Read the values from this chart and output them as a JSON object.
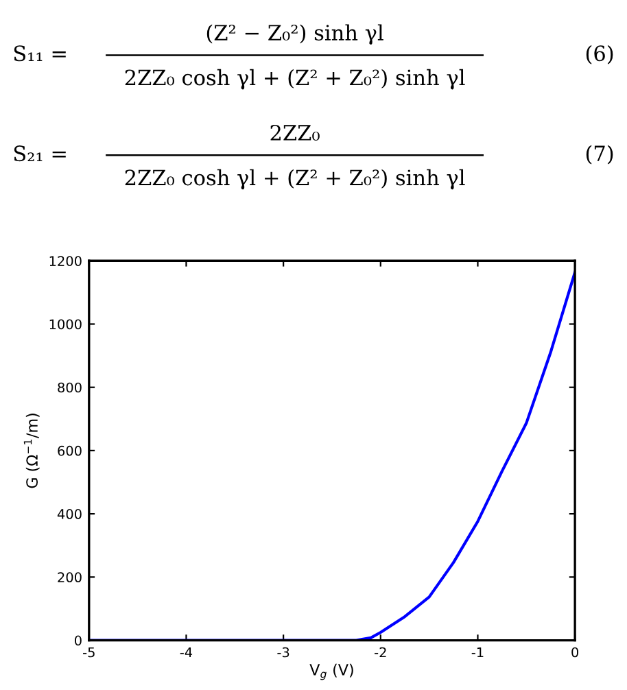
{
  "chart_data": {
    "type": "line",
    "xlabel": "V$_{g}$ (V)",
    "ylabel": "G (Ω$^{−1}$/m)",
    "series": [
      {
        "color": "#0000ff",
        "x": [
          -5,
          -4,
          -3,
          -2.25,
          -2.1,
          -2,
          -1.75,
          -1.5,
          -1.25,
          -1,
          -0.75,
          -0.5,
          -0.25,
          0
        ],
        "values": [
          0,
          0,
          0,
          0,
          8,
          25,
          75,
          137,
          246,
          376,
          535,
          687,
          911,
          1164
        ]
      }
    ],
    "xlim": [
      -5,
      0
    ],
    "xticks": [
      -5,
      -4,
      -3,
      -2,
      -1,
      0
    ],
    "ylim": [
      0,
      1200
    ],
    "yticks": [
      0,
      200,
      400,
      600,
      800,
      1000,
      1200
    ],
    "grid": false,
    "marker": "none",
    "line_style": "solid",
    "annotations": [
      "S₁₁ =",
      "(Z² − Z₀²) sinh γl",
      "2ZZ₀ cosh γl + (Z² + Z₀²) sinh γl",
      "(6)",
      "S₂₁ =",
      "2ZZ₀",
      "2ZZ₀ cosh γl + (Z² + Z₀²) sinh γl",
      "(7)"
    ]
  }
}
